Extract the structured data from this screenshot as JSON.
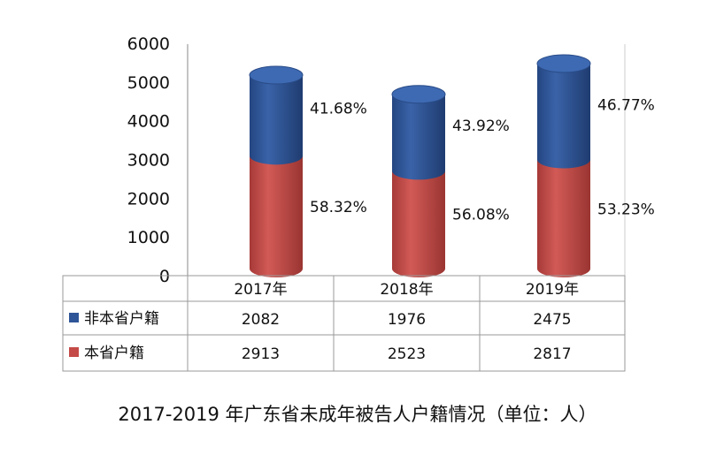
{
  "colors": {
    "blue": "#2E5597",
    "red": "#C44A47"
  },
  "chart_data": {
    "type": "bar",
    "title": "2017-2019 年广东省未成年被告人户籍情况（单位：人）",
    "categories": [
      "2017年",
      "2018年",
      "2019年"
    ],
    "series": [
      {
        "name": "本省户籍",
        "values": [
          2913,
          2523,
          2817
        ],
        "percent_labels": [
          "58.32%",
          "56.08%",
          "53.23%"
        ]
      },
      {
        "name": "非本省户籍",
        "values": [
          2082,
          1976,
          2475
        ],
        "percent_labels": [
          "41.68%",
          "43.92%",
          "46.77%"
        ]
      }
    ],
    "stacked": true,
    "ylim": [
      0,
      6000
    ],
    "yticks": [
      0,
      1000,
      2000,
      3000,
      4000,
      5000,
      6000
    ],
    "grid": false,
    "legend": "data-table"
  }
}
